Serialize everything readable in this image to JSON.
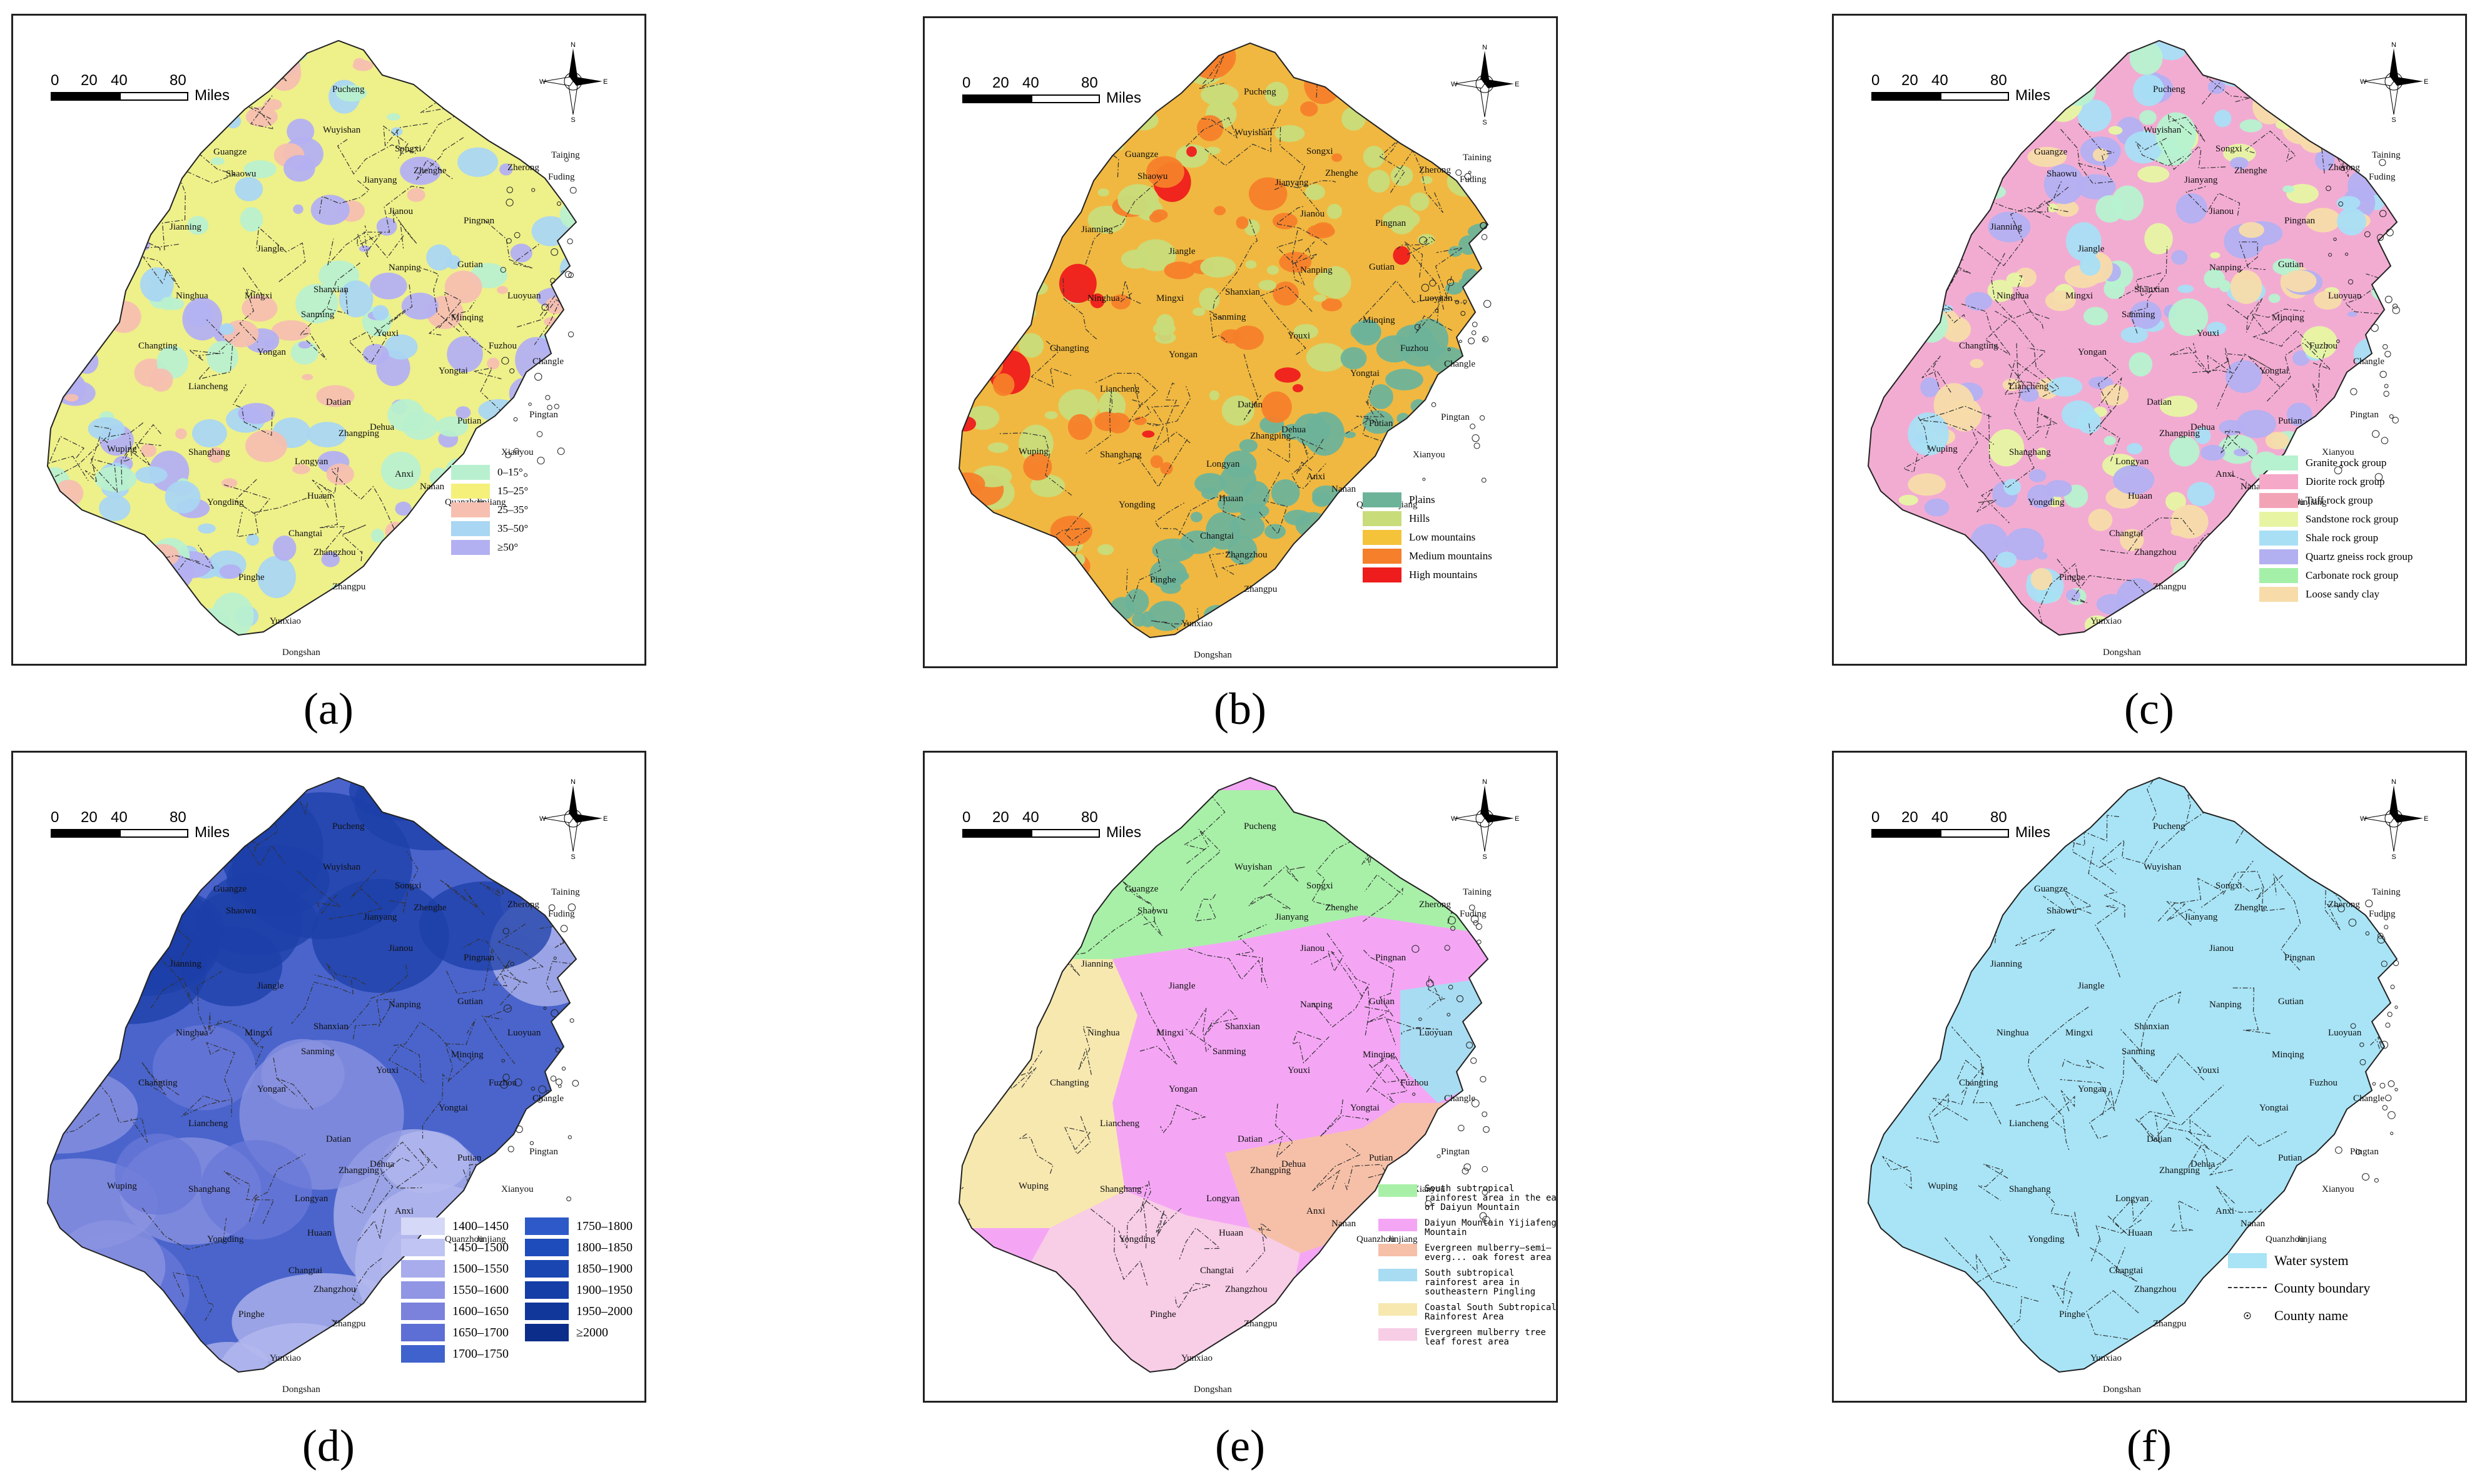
{
  "figure": {
    "scale_numbers": [
      "0",
      "20",
      "40",
      "80"
    ],
    "scale_unit": "Miles",
    "compass": {
      "n": "N",
      "s": "S",
      "e": "E",
      "w": "W"
    },
    "county_names": [
      "Pucheng",
      "Wuyishan",
      "Songxi",
      "Guangze",
      "Shaowu",
      "Jianyang",
      "Zhenghe",
      "Zherong",
      "Fuding",
      "Taining",
      "Jianou",
      "Pingnan",
      "Jiangle",
      "Nanping",
      "Gutian",
      "Jianning",
      "Ninghua",
      "Mingxi",
      "Shanxian",
      "Sanming",
      "Youxi",
      "Minqing",
      "Luoyuan",
      "Changting",
      "Yongan",
      "Yongtai",
      "Fuzhou",
      "Changle",
      "Liancheng",
      "Datian",
      "Dehua",
      "Putian",
      "Pingtan",
      "Wuping",
      "Shanghang",
      "Longyan",
      "Zhangping",
      "Anxi",
      "Nanan",
      "Quanzhou",
      "Yongding",
      "Changtai",
      "Zhangzhou",
      "Pinghe",
      "Yunxiao",
      "Zhangpu",
      "Dongshan",
      "Huaan",
      "Xianyou",
      "Jinjiang"
    ]
  },
  "panels": [
    {
      "id": "a",
      "caption": "(a)",
      "legend": [
        {
          "label": "0–15°",
          "color": "#b8f0cf"
        },
        {
          "label": "15–25°",
          "color": "#f5f07a"
        },
        {
          "label": "25–35°",
          "color": "#f6bfb0"
        },
        {
          "label": "35–50°",
          "color": "#a9d6f2"
        },
        {
          "label": "≥50°",
          "color": "#b3b0f2"
        }
      ],
      "map_fill": "#eef08a",
      "map_patches": [
        "#b8f0cf",
        "#f6bfb0",
        "#a9d6f2",
        "#b3b0f2"
      ]
    },
    {
      "id": "b",
      "caption": "(b)",
      "legend": [
        {
          "label": "Plains",
          "color": "#6db39a"
        },
        {
          "label": "Hills",
          "color": "#c8dc7a"
        },
        {
          "label": "Low mountains",
          "color": "#f5c33a"
        },
        {
          "label": "Medium mountains",
          "color": "#f57f2a"
        },
        {
          "label": "High mountains",
          "color": "#ee1c1c"
        }
      ],
      "map_fill": "#f0b840",
      "map_patches": [
        "#c8dc7a",
        "#6db39a",
        "#f57f2a",
        "#ee1c1c"
      ]
    },
    {
      "id": "c",
      "caption": "(c)",
      "legend": [
        {
          "label": "Granite rock group",
          "color": "#b6f2d0"
        },
        {
          "label": "Diorite rock group",
          "color": "#f5a8c8"
        },
        {
          "label": "Tuff rock group",
          "color": "#f2a4b6"
        },
        {
          "label": "Sandstone rock group",
          "color": "#e7f5a3"
        },
        {
          "label": "Shale rock group",
          "color": "#a8dff5"
        },
        {
          "label": "Quartz gneiss rock group",
          "color": "#b3b0f2"
        },
        {
          "label": "Carbonate rock group",
          "color": "#a4f0a8"
        },
        {
          "label": "Loose sandy clay",
          "color": "#f7dcaa"
        }
      ],
      "map_fill": "#f2acd2",
      "map_patches": [
        "#a8dff5",
        "#e7f5a3",
        "#b6f2d0",
        "#b3b0f2",
        "#f7dcaa"
      ]
    },
    {
      "id": "d",
      "caption": "(d)",
      "legend": [
        {
          "label": "1400–1450",
          "color": "#d6d8f7"
        },
        {
          "label": "1750–1800",
          "color": "#2d5ac8"
        },
        {
          "label": "1450–1500",
          "color": "#c0c4f2"
        },
        {
          "label": "1800–1850",
          "color": "#1e4cbb"
        },
        {
          "label": "1500–1550",
          "color": "#a8acec"
        },
        {
          "label": "1850–1900",
          "color": "#1a46b2"
        },
        {
          "label": "1550–1600",
          "color": "#9095e4"
        },
        {
          "label": "1900–1950",
          "color": "#153ea6"
        },
        {
          "label": "1600–1650",
          "color": "#7a82dc"
        },
        {
          "label": "1950–2000",
          "color": "#11379b"
        },
        {
          "label": "1650–1700",
          "color": "#5d6fd4"
        },
        {
          "label": "≥2000",
          "color": "#0c2e8a"
        },
        {
          "label": "1700–1750",
          "color": "#4062cc"
        }
      ],
      "map_fill": "#4a64cc",
      "map_patches": [
        "#8c94e2",
        "#b4b8ee",
        "#1c3fa8",
        "#6a78d8"
      ]
    },
    {
      "id": "e",
      "caption": "(e)",
      "legend": [
        {
          "label": "South subtropical rainforest area in the east of Daiyun Mountain",
          "color": "#a8f0a8"
        },
        {
          "label": "Daiyun Mountain Yijiafeng Mountain",
          "color": "#f4a6f4"
        },
        {
          "label": "Evergreen mulberry–semi–everg... oak forest area",
          "color": "#f6c0a8"
        },
        {
          "label": "South subtropical rainforest area in southeastern Pingling",
          "color": "#a8dcf2"
        },
        {
          "label": "Coastal South Subtropical Rainforest Area",
          "color": "#f7e8b0"
        },
        {
          "label": "Evergreen mulberry tree leaf forest area",
          "color": "#f8cde6"
        }
      ],
      "map_fill": "#f4a6f4",
      "map_patches": [
        "#a8f0a8",
        "#f7e8b0",
        "#f6c0a8",
        "#f8cde6",
        "#a8dcf2"
      ]
    },
    {
      "id": "f",
      "caption": "(f)",
      "legend": [
        {
          "label": "Water system",
          "color": "#a8e4f6"
        },
        {
          "label": "County boundary",
          "color": "line"
        },
        {
          "label": "County name",
          "color": "dot"
        }
      ],
      "map_fill": "#a8e4f6",
      "map_patches": []
    }
  ]
}
